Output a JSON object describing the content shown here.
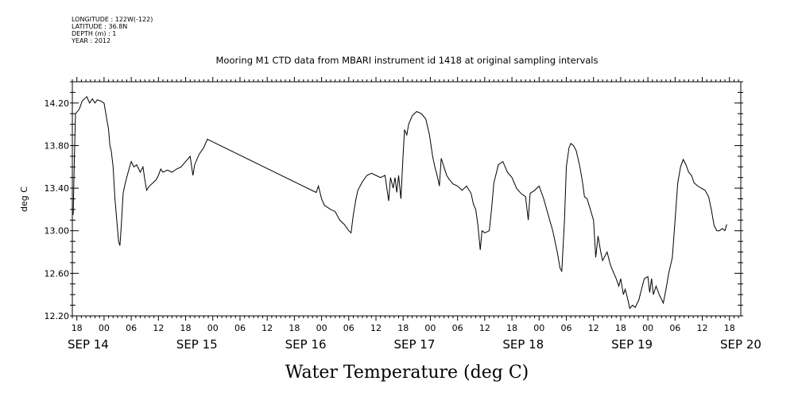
{
  "meta": {
    "longitude": "LONGITUDE : 122W(-122)",
    "latitude": "LATITUDE : 36.8N",
    "depth": "DEPTH (m) : 1",
    "year": "YEAR : 2012"
  },
  "chart_data": {
    "type": "line",
    "title": "Mooring M1 CTD data from MBARI instrument id 1418 at original sampling intervals",
    "xlabel": "Water Temperature (deg C)",
    "ylabel": "deg C",
    "ylim": [
      12.2,
      14.4
    ],
    "yticks": [
      "12.20",
      "12.60",
      "13.00",
      "13.40",
      "13.80",
      "14.20"
    ],
    "xlim_hours": [
      -7,
      140.5
    ],
    "hour_tick_labels": [
      "18",
      "00",
      "06",
      "12",
      "18",
      "00",
      "06",
      "12",
      "18",
      "00",
      "06",
      "12",
      "18",
      "00",
      "06",
      "12",
      "18",
      "00",
      "06",
      "12",
      "18",
      "00",
      "06",
      "12",
      "18"
    ],
    "date_labels": [
      "SEP 14",
      "SEP 15",
      "SEP 16",
      "SEP 17",
      "SEP 18",
      "SEP 19",
      "SEP 20"
    ],
    "series": [
      {
        "values": [
          [
            -6.8,
            13.15
          ],
          [
            -6.6,
            13.6
          ],
          [
            -6.3,
            14.1
          ],
          [
            -5.5,
            14.14
          ],
          [
            -4.8,
            14.22
          ],
          [
            -3.8,
            14.26
          ],
          [
            -3.2,
            14.2
          ],
          [
            -2.6,
            14.24
          ],
          [
            -2,
            14.2
          ],
          [
            -1.5,
            14.23
          ],
          [
            -0.8,
            14.22
          ],
          [
            0,
            14.2
          ],
          [
            0.6,
            14.05
          ],
          [
            1,
            13.95
          ],
          [
            1.3,
            13.8
          ],
          [
            1.6,
            13.75
          ],
          [
            2,
            13.6
          ],
          [
            2.4,
            13.3
          ],
          [
            2.8,
            13.1
          ],
          [
            3.2,
            12.9
          ],
          [
            3.5,
            12.86
          ],
          [
            3.8,
            13.05
          ],
          [
            4.2,
            13.35
          ],
          [
            4.6,
            13.43
          ],
          [
            5,
            13.5
          ],
          [
            5.5,
            13.58
          ],
          [
            6,
            13.65
          ],
          [
            6.6,
            13.6
          ],
          [
            7.2,
            13.62
          ],
          [
            8,
            13.55
          ],
          [
            8.6,
            13.6
          ],
          [
            9,
            13.48
          ],
          [
            9.4,
            13.38
          ],
          [
            10,
            13.42
          ],
          [
            10.8,
            13.45
          ],
          [
            11.5,
            13.48
          ],
          [
            12,
            13.52
          ],
          [
            12.5,
            13.58
          ],
          [
            13,
            13.55
          ],
          [
            14,
            13.57
          ],
          [
            15,
            13.55
          ],
          [
            16,
            13.58
          ],
          [
            17,
            13.6
          ],
          [
            18,
            13.65
          ],
          [
            19,
            13.7
          ],
          [
            19.6,
            13.52
          ],
          [
            20,
            13.62
          ],
          [
            21,
            13.72
          ],
          [
            22,
            13.78
          ],
          [
            22.8,
            13.86
          ],
          [
            46.8,
            13.36
          ],
          [
            47.3,
            13.42
          ],
          [
            48,
            13.3
          ],
          [
            48.6,
            13.24
          ],
          [
            50,
            13.2
          ],
          [
            51,
            13.18
          ],
          [
            52,
            13.1
          ],
          [
            53,
            13.06
          ],
          [
            54,
            13.0
          ],
          [
            54.5,
            12.98
          ],
          [
            55,
            13.15
          ],
          [
            55.6,
            13.3
          ],
          [
            56,
            13.38
          ],
          [
            57,
            13.46
          ],
          [
            58,
            13.52
          ],
          [
            59,
            13.54
          ],
          [
            60,
            13.52
          ],
          [
            61,
            13.5
          ],
          [
            62,
            13.52
          ],
          [
            62.8,
            13.28
          ],
          [
            63.2,
            13.5
          ],
          [
            63.8,
            13.4
          ],
          [
            64.2,
            13.5
          ],
          [
            64.6,
            13.36
          ],
          [
            65,
            13.52
          ],
          [
            65.5,
            13.3
          ],
          [
            66,
            13.72
          ],
          [
            66.3,
            13.95
          ],
          [
            66.8,
            13.9
          ],
          [
            67.2,
            14.0
          ],
          [
            68,
            14.08
          ],
          [
            69,
            14.12
          ],
          [
            70,
            14.1
          ],
          [
            71,
            14.05
          ],
          [
            71.8,
            13.9
          ],
          [
            72.5,
            13.7
          ],
          [
            73,
            13.6
          ],
          [
            73.6,
            13.5
          ],
          [
            74,
            13.42
          ],
          [
            74.4,
            13.68
          ],
          [
            75,
            13.6
          ],
          [
            75.6,
            13.52
          ],
          [
            76.2,
            13.48
          ],
          [
            77,
            13.44
          ],
          [
            78,
            13.42
          ],
          [
            79,
            13.38
          ],
          [
            80,
            13.42
          ],
          [
            81,
            13.35
          ],
          [
            81.5,
            13.25
          ],
          [
            82,
            13.2
          ],
          [
            82.5,
            13.05
          ],
          [
            83,
            12.82
          ],
          [
            83.4,
            13.0
          ],
          [
            84,
            12.98
          ],
          [
            85,
            13.0
          ],
          [
            85.5,
            13.2
          ],
          [
            86,
            13.45
          ],
          [
            86.6,
            13.55
          ],
          [
            87,
            13.62
          ],
          [
            88,
            13.65
          ],
          [
            89,
            13.55
          ],
          [
            90,
            13.5
          ],
          [
            91,
            13.4
          ],
          [
            92,
            13.35
          ],
          [
            93,
            13.32
          ],
          [
            93.6,
            13.1
          ],
          [
            94,
            13.35
          ],
          [
            95,
            13.38
          ],
          [
            96,
            13.42
          ],
          [
            97,
            13.3
          ],
          [
            98,
            13.15
          ],
          [
            99,
            13.0
          ],
          [
            100,
            12.8
          ],
          [
            100.6,
            12.65
          ],
          [
            101,
            12.62
          ],
          [
            101.6,
            13.1
          ],
          [
            102,
            13.6
          ],
          [
            102.6,
            13.78
          ],
          [
            103,
            13.82
          ],
          [
            103.6,
            13.8
          ],
          [
            104.2,
            13.75
          ],
          [
            105,
            13.6
          ],
          [
            105.6,
            13.45
          ],
          [
            106,
            13.32
          ],
          [
            106.6,
            13.3
          ],
          [
            107.3,
            13.2
          ],
          [
            108,
            13.1
          ],
          [
            108.5,
            12.75
          ],
          [
            109,
            12.95
          ],
          [
            109.6,
            12.8
          ],
          [
            110,
            12.72
          ],
          [
            111,
            12.8
          ],
          [
            111.6,
            12.7
          ],
          [
            112,
            12.65
          ],
          [
            113,
            12.55
          ],
          [
            113.6,
            12.48
          ],
          [
            114,
            12.55
          ],
          [
            114.6,
            12.4
          ],
          [
            115,
            12.45
          ],
          [
            115.6,
            12.35
          ],
          [
            116,
            12.27
          ],
          [
            116.6,
            12.3
          ],
          [
            117.2,
            12.28
          ],
          [
            118,
            12.35
          ],
          [
            118.6,
            12.45
          ],
          [
            119.2,
            12.55
          ],
          [
            120,
            12.57
          ],
          [
            120.4,
            12.42
          ],
          [
            120.8,
            12.55
          ],
          [
            121.2,
            12.4
          ],
          [
            121.8,
            12.48
          ],
          [
            122.5,
            12.4
          ],
          [
            123.4,
            12.32
          ],
          [
            124,
            12.45
          ],
          [
            124.6,
            12.6
          ],
          [
            125.4,
            12.75
          ],
          [
            126,
            13.1
          ],
          [
            126.6,
            13.45
          ],
          [
            127.2,
            13.6
          ],
          [
            127.8,
            13.67
          ],
          [
            128.4,
            13.62
          ],
          [
            129,
            13.55
          ],
          [
            129.6,
            13.52
          ],
          [
            130.2,
            13.45
          ],
          [
            131,
            13.42
          ],
          [
            131.8,
            13.4
          ],
          [
            132.6,
            13.38
          ],
          [
            133.4,
            13.32
          ],
          [
            134,
            13.2
          ],
          [
            134.6,
            13.05
          ],
          [
            135.2,
            13.0
          ],
          [
            135.8,
            13.0
          ],
          [
            136.4,
            13.02
          ],
          [
            137,
            13.0
          ],
          [
            137.4,
            13.06
          ]
        ]
      }
    ]
  }
}
